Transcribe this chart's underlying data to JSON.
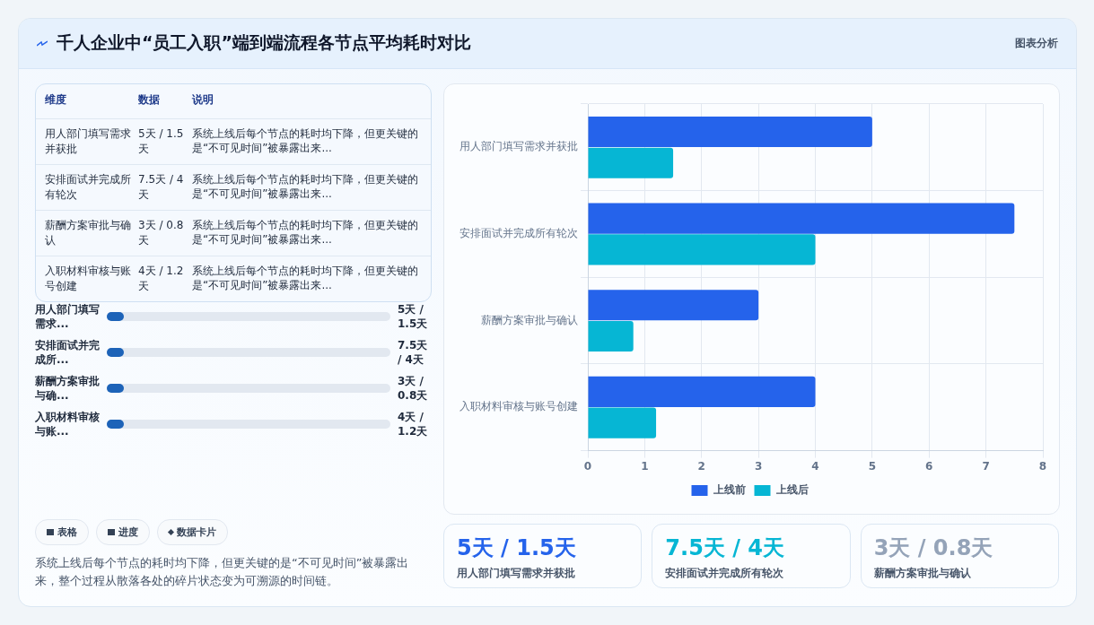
{
  "chart_data": [
    {
      "type": "bar",
      "title": "千人企业中“员工入职”端到端流程各节点平均耗时对比",
      "orientation": "horizontal",
      "categories": [
        "用人部门填写需求并获批",
        "安排面试并完成所有轮次",
        "薪酬方案审批与确认",
        "入职材料审核与账号创建"
      ],
      "series": [
        {
          "name": "上线前",
          "color": "#2563eb",
          "values": [
            5,
            7.5,
            3,
            4
          ]
        },
        {
          "name": "上线后",
          "color": "#06b6d4",
          "values": [
            1.5,
            4,
            0.8,
            1.2
          ]
        }
      ],
      "xlim": [
        0,
        8
      ],
      "xticks": [
        0,
        1,
        2,
        3,
        4,
        5,
        6,
        7,
        8
      ],
      "grid": true,
      "legend": "bottom",
      "annotations": [
        "图表分析"
      ]
    },
    {
      "type": "other",
      "annotations": [
        "维度",
        "数据",
        "说明",
        "用人部门填写需求并获批",
        "5天 / 1.5天",
        "系统上线后每个节点的耗时均下降，但更关键的是“不可见时间”被暴露出来...",
        "安排面试并完成所有轮次",
        "7.5天 / 4天",
        "系统上线后每个节点的耗时均下降，但更关键的是“不可见时间”被暴露出来...",
        "薪酬方案审批与确认",
        "3天 / 0.8天",
        "系统上线后每个节点的耗时均下降，但更关键的是“不可见时间”被暴露出来...",
        "入职材料审核与账号创建",
        "4天 / 1.2天",
        "系统上线后每个节点的耗时均下降，但更关键的是“不可见时间”被暴露出来..."
      ]
    },
    {
      "type": "other",
      "annotations": [
        "用人部门填写需求...",
        "5天 / 1.5天",
        "安排面试并完成所...",
        "7.5天 / 4天",
        "薪酬方案审批与确...",
        "3天 / 0.8天",
        "入职材料审核与账...",
        "4天 / 1.2天"
      ]
    },
    {
      "type": "other",
      "annotations": [
        "表格",
        "进度",
        "数据卡片",
        "系统上线后每个节点的耗时均下降，但更关键的是“不可见时间”被暴露出来，整个过程从散落各处的碎片状态变为可溯源的时间链。"
      ]
    },
    {
      "type": "other",
      "annotations": [
        "5天 / 1.5天",
        "用人部门填写需求并获批",
        "7.5天 / 4天",
        "安排面试并完成所有轮次",
        "3天 / 0.8天",
        "薪酬方案审批与确认"
      ]
    }
  ]
}
